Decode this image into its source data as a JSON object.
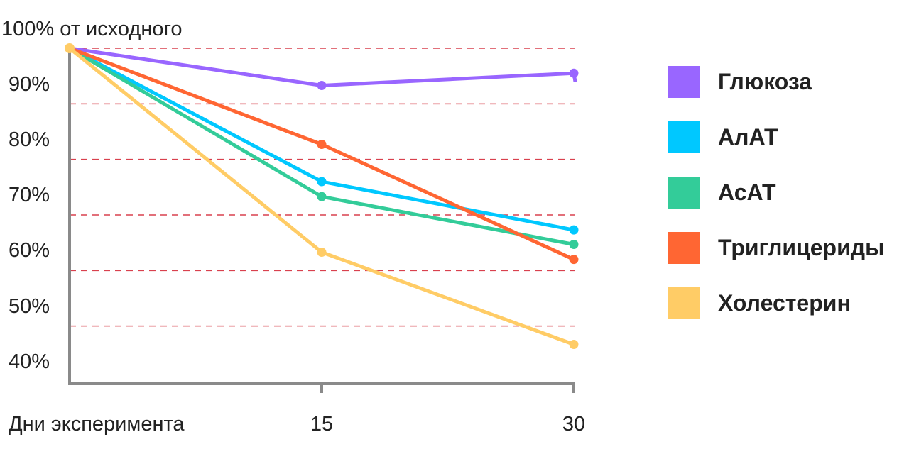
{
  "chart_data": {
    "type": "line",
    "title": "",
    "ylabel": "от исходного",
    "xlabel": "Дни эксперимента",
    "x": [
      0,
      15,
      30
    ],
    "x_tick_labels": [
      "15",
      "30"
    ],
    "y_tick_labels": [
      "100% от исходного",
      "90%",
      "80%",
      "70%",
      "60%",
      "50%",
      "40%"
    ],
    "ylim": [
      40,
      100
    ],
    "grid": "horizontal dashed",
    "legend_position": "right",
    "series": [
      {
        "name": "Глюкоза",
        "color": "#9966ff",
        "values": [
          100,
          93.3,
          95.5
        ]
      },
      {
        "name": "АлАТ",
        "color": "#00c8ff",
        "values": [
          100,
          76,
          67.3
        ]
      },
      {
        "name": "АсАТ",
        "color": "#33cc99",
        "values": [
          100,
          73.3,
          64.7
        ]
      },
      {
        "name": "Триглицериды",
        "color": "#ff6633",
        "values": [
          100,
          82.7,
          62
        ]
      },
      {
        "name": "Холестерин",
        "color": "#ffcc66",
        "values": [
          100,
          63.3,
          46.7
        ]
      }
    ]
  }
}
